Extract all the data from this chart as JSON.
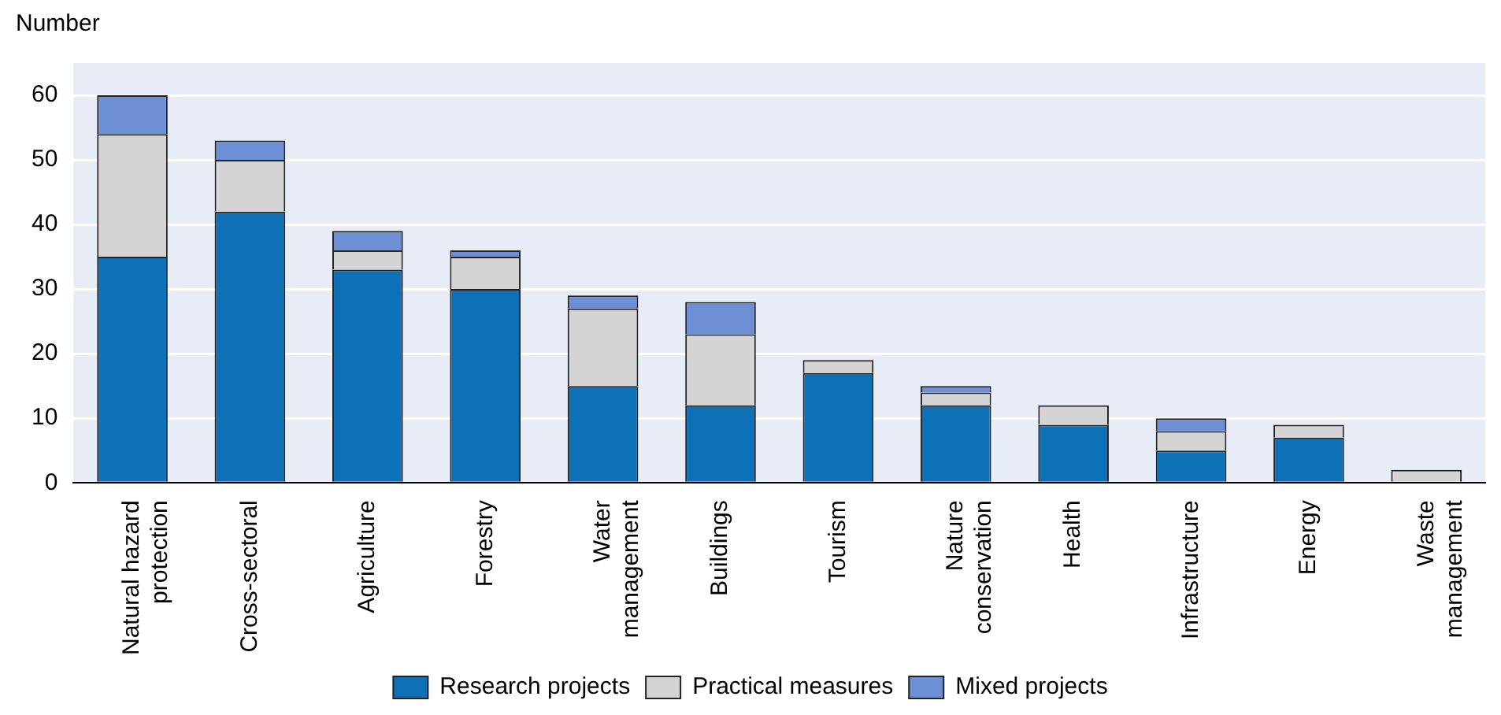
{
  "chart_data": {
    "type": "bar",
    "ylabel": "Number",
    "stacked": true,
    "categories": [
      "Natural hazard protection",
      "Cross-sectoral",
      "Agriculture",
      "Forestry",
      "Water management",
      "Buildings",
      "Tourism",
      "Nature conservation",
      "Health",
      "Infrastructure",
      "Energy",
      "Waste management"
    ],
    "series": [
      {
        "name": "Research projects",
        "color": "#0e71b8",
        "values": [
          35,
          42,
          33,
          30,
          15,
          12,
          17,
          12,
          9,
          5,
          7,
          0
        ]
      },
      {
        "name": "Practical measures",
        "color": "#d4d4d4",
        "values": [
          19,
          8,
          3,
          5,
          12,
          11,
          2,
          2,
          3,
          3,
          2,
          2
        ]
      },
      {
        "name": "Mixed projects",
        "color": "#6c8fd5",
        "values": [
          6,
          3,
          3,
          1,
          2,
          5,
          0,
          1,
          0,
          2,
          0,
          0
        ]
      }
    ],
    "ylim": [
      0,
      65
    ],
    "yticks": [
      0,
      10,
      20,
      30,
      40,
      50,
      60
    ],
    "grid": "y",
    "legend": "bottom"
  }
}
